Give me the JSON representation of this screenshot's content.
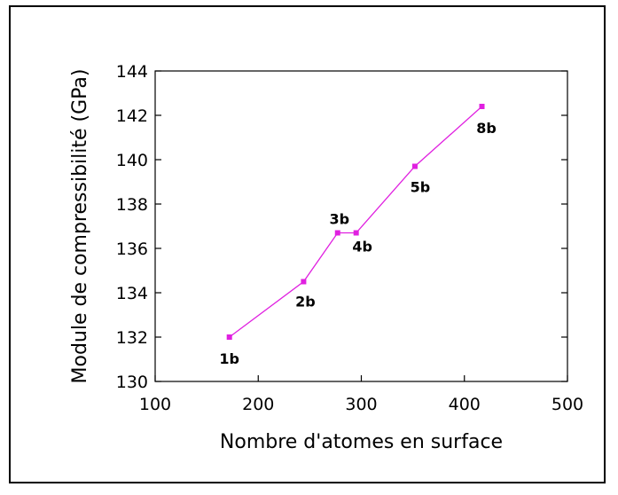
{
  "chart_data": {
    "type": "line",
    "title": "",
    "xlabel": "Nombre d'atomes en surface",
    "ylabel": "Module de compressibilité (GPa)",
    "xlim": [
      100,
      500
    ],
    "ylim": [
      130,
      144
    ],
    "xticks": [
      100,
      200,
      300,
      400,
      500
    ],
    "yticks": [
      130,
      132,
      134,
      136,
      138,
      140,
      142,
      144
    ],
    "grid": false,
    "legend": "none",
    "series": [
      {
        "color": "#e020e0",
        "points": [
          {
            "x": 172,
            "y": 132.0,
            "label": "1b"
          },
          {
            "x": 244,
            "y": 134.5,
            "label": "2b"
          },
          {
            "x": 277,
            "y": 136.7,
            "label": "3b"
          },
          {
            "x": 295,
            "y": 136.7,
            "label": "4b"
          },
          {
            "x": 352,
            "y": 139.7,
            "label": "5b"
          },
          {
            "x": 417,
            "y": 142.4,
            "label": "8b"
          }
        ]
      }
    ]
  }
}
